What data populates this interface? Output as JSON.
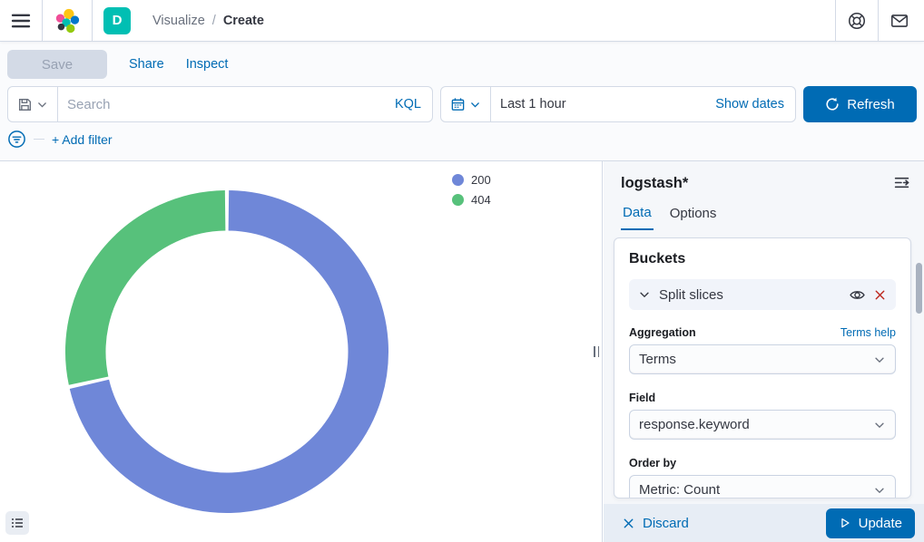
{
  "topbar": {
    "breadcrumb": [
      "Visualize",
      "Create"
    ],
    "breadcrumb_separator": "/",
    "app_badge": "D"
  },
  "toolbar": {
    "save_label": "Save",
    "share_label": "Share",
    "inspect_label": "Inspect"
  },
  "search": {
    "placeholder": "Search",
    "query_language": "KQL"
  },
  "timepicker": {
    "value": "Last 1 hour",
    "show_dates_label": "Show dates",
    "refresh_label": "Refresh"
  },
  "filter_bar": {
    "add_filter_label": "+ Add filter"
  },
  "legend": [
    {
      "label": "200",
      "color": "#6F87D8"
    },
    {
      "label": "404",
      "color": "#57C17B"
    }
  ],
  "panel": {
    "title": "logstash*",
    "tabs": [
      "Data",
      "Options"
    ],
    "active_tab": "Data",
    "buckets": {
      "heading": "Buckets",
      "bucket_label": "Split slices",
      "aggregation": {
        "label": "Aggregation",
        "help": "Terms help",
        "value": "Terms"
      },
      "field": {
        "label": "Field",
        "value": "response.keyword"
      },
      "order_by": {
        "label": "Order by",
        "value": "Metric: Count"
      }
    },
    "footer": {
      "discard_label": "Discard",
      "update_label": "Update"
    }
  },
  "chart_data": {
    "type": "pie",
    "subtype": "donut",
    "title": "",
    "categories": [
      "200",
      "404"
    ],
    "values": [
      71.5,
      28.5
    ],
    "value_unit": "percent-of-total (estimated from arc angles; counts not displayed)",
    "colors": [
      "#6F87D8",
      "#57C17B"
    ],
    "start_angle_deg": 0,
    "clockwise": true,
    "legend_position": "top-right",
    "inner_radius_ratio": 0.75
  },
  "colors": {
    "primary": "#006BB4",
    "accent_teal": "#00BFB3",
    "danger": "#BD271E",
    "border": "#D3DAE6"
  }
}
